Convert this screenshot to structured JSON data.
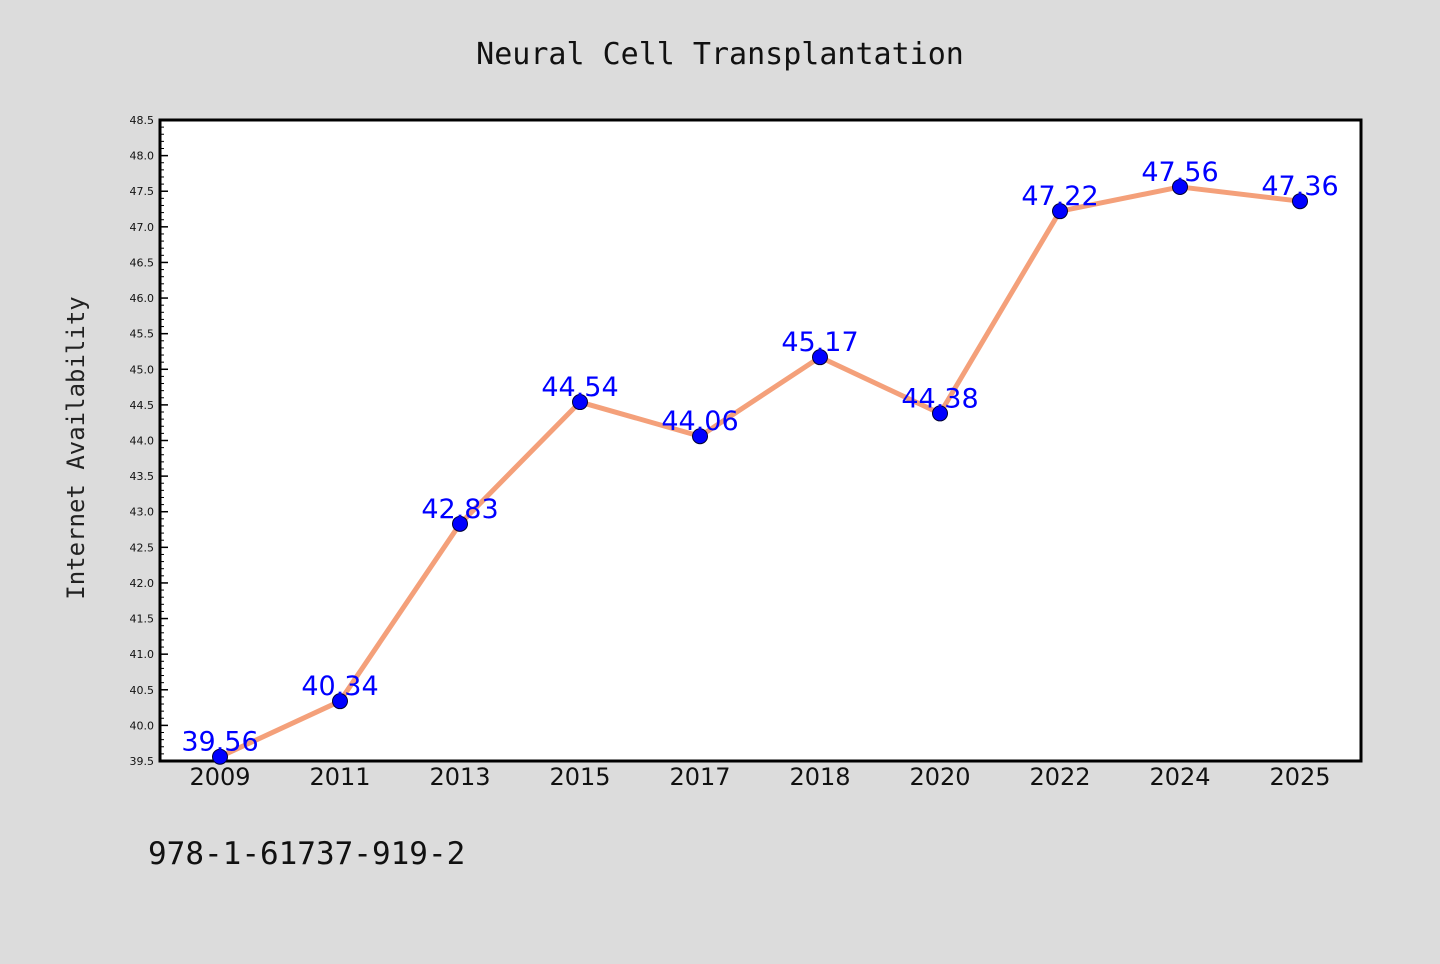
{
  "chart_data": {
    "type": "line",
    "title": "Neural Cell Transplantation",
    "xlabel": "",
    "ylabel": "Internet Availability",
    "categories": [
      "2009",
      "2011",
      "2013",
      "2015",
      "2017",
      "2018",
      "2020",
      "2022",
      "2024",
      "2025"
    ],
    "series": [
      {
        "values": [
          39.56,
          40.34,
          42.83,
          44.54,
          44.06,
          45.17,
          44.38,
          47.22,
          47.56,
          47.36
        ],
        "data_labels": [
          "39.56",
          "40.34",
          "42.83",
          "44.54",
          "44.06",
          "45.17",
          "44.38",
          "47.22",
          "47.56",
          "47.36"
        ],
        "line_color": "#f4a07a",
        "marker_color": "#0000ff"
      }
    ],
    "ylim": [
      39.5,
      48.5
    ],
    "yticks": [
      "39.5",
      "40.0",
      "40.5",
      "41.0",
      "41.5",
      "42.0",
      "42.5",
      "43.0",
      "43.5",
      "44.0",
      "44.5",
      "45.0",
      "45.5",
      "46.0",
      "46.5",
      "47.0",
      "47.5",
      "48.0",
      "48.5"
    ],
    "grid": false,
    "label_color": "#0000ff"
  },
  "footer": {
    "isbn": "978-1-61737-919-2"
  }
}
